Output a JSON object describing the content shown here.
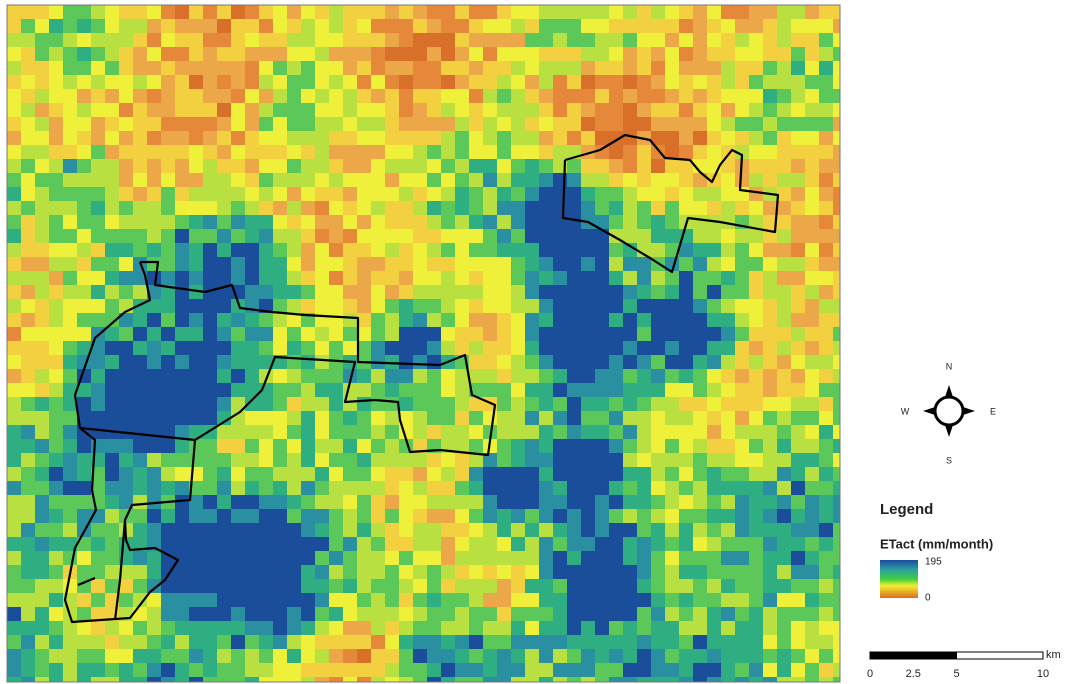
{
  "map": {
    "legend": {
      "title": "Legend",
      "layer": "ETact (mm/month)",
      "max": 195,
      "min": 0
    },
    "compass": {
      "n": "N",
      "e": "E",
      "s": "S",
      "w": "W"
    },
    "scale_bar": {
      "ticks": [
        0,
        2.5,
        5,
        10
      ],
      "unit": "km"
    }
  }
}
